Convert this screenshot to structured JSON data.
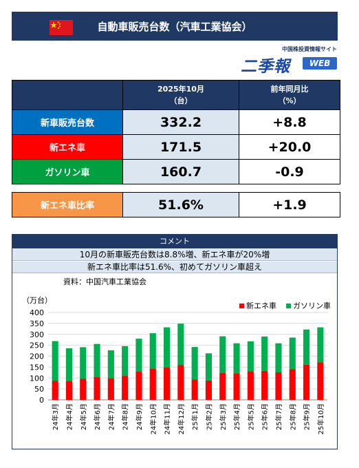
{
  "header": {
    "title": "自動車販売台数（汽車工業協会）"
  },
  "logo": {
    "top_text": "中国株投資情報サイト",
    "main_text": "二季報",
    "web_text": "WEB"
  },
  "table": {
    "col1_line1": "2025年10月",
    "col1_line2": "（台）",
    "col2_line1": "前年同月比",
    "col2_line2": "（%）",
    "rows": [
      {
        "label": "新車販売台数",
        "value": "332.2",
        "yoy": "+8.8",
        "color": "#0070c0"
      },
      {
        "label": "新エネ車",
        "value": "171.5",
        "yoy": "+20.0",
        "color": "#ff0000"
      },
      {
        "label": "ガソリン車",
        "value": "160.7",
        "yoy": "-0.9",
        "color": "#00a040"
      }
    ],
    "ratio": {
      "label": "新エネ車比率",
      "value": "51.6%",
      "yoy": "+1.9",
      "color": "#f79646"
    }
  },
  "comment": {
    "title": "コメント",
    "line1": "10月の新車販売台数は8.8%増、新エネ車が20%増",
    "line2": "新エネ車比率は51.6%、初めてガソリン車超え",
    "source": "資料：中国汽車工業協会"
  },
  "chart_data": {
    "type": "bar",
    "stacked": true,
    "unit_label": "（万台）",
    "ylim": [
      0,
      400
    ],
    "yticks": [
      0,
      50,
      100,
      150,
      200,
      250,
      300,
      350,
      400
    ],
    "categories": [
      "24年3月",
      "24年4月",
      "24年5月",
      "24年6月",
      "24年7月",
      "24年8月",
      "24年9月",
      "24年10月",
      "24年11月",
      "24年12月",
      "25年1月",
      "25年2月",
      "25年3月",
      "25年4月",
      "25年5月",
      "25年6月",
      "25年7月",
      "25年8月",
      "25年9月",
      "25年10月"
    ],
    "series": [
      {
        "name": "新エネ車",
        "color": "#ff0000",
        "values": [
          88,
          85,
          96,
          104,
          99,
          110,
          129,
          143,
          148,
          159,
          94,
          89,
          124,
          122,
          131,
          133,
          126,
          140,
          161,
          172
        ]
      },
      {
        "name": "ガソリン車",
        "color": "#00b050",
        "values": [
          181,
          151,
          145,
          152,
          128,
          136,
          151,
          162,
          184,
          190,
          148,
          124,
          167,
          137,
          137,
          157,
          133,
          145,
          161,
          160
        ]
      }
    ],
    "legend_position": "top-right",
    "grid": true
  }
}
